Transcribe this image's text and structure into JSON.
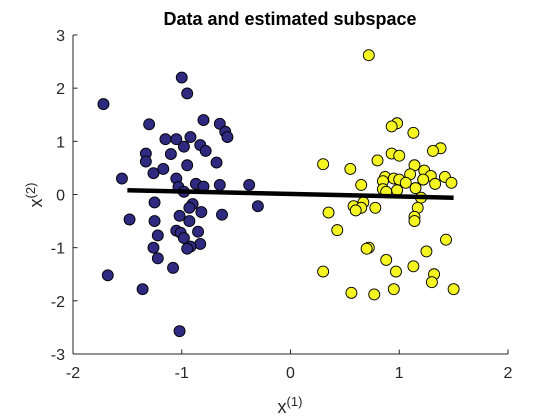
{
  "chart_data": {
    "type": "scatter",
    "title": "Data and estimated subspace",
    "xlabel": {
      "base": "x",
      "sup": "(1)"
    },
    "ylabel": {
      "base": "x",
      "sup": "(2)"
    },
    "xlim": [
      -2,
      2
    ],
    "ylim": [
      -3,
      3
    ],
    "xticks": [
      "-2",
      "-1",
      "0",
      "1",
      "2"
    ],
    "yticks": [
      "-3",
      "-2",
      "-1",
      "0",
      "1",
      "2",
      "3"
    ],
    "xtick_values": [
      -2,
      -1,
      0,
      1,
      2
    ],
    "ytick_values": [
      -3,
      -2,
      -1,
      0,
      1,
      2,
      3
    ],
    "grid": false,
    "colors": {
      "cluster1": "#2e2a80",
      "cluster2": "#f5f522",
      "marker_edge": "#000000",
      "subspace_line": "#000000",
      "axis": "#262626"
    },
    "series": [
      {
        "color": "#2e2a80",
        "points": [
          [
            -1.0,
            2.2
          ],
          [
            -0.95,
            1.9
          ],
          [
            -1.72,
            1.7
          ],
          [
            -0.8,
            1.4
          ],
          [
            -0.65,
            1.33
          ],
          [
            -1.3,
            1.32
          ],
          [
            -0.6,
            1.18
          ],
          [
            -0.58,
            1.08
          ],
          [
            -1.05,
            1.04
          ],
          [
            -0.92,
            1.08
          ],
          [
            -0.83,
            0.93
          ],
          [
            -1.15,
            1.04
          ],
          [
            -1.33,
            0.77
          ],
          [
            -0.98,
            0.9
          ],
          [
            -0.78,
            0.82
          ],
          [
            -1.1,
            0.76
          ],
          [
            -1.33,
            0.62
          ],
          [
            -0.68,
            0.6
          ],
          [
            -0.95,
            0.55
          ],
          [
            -1.17,
            0.48
          ],
          [
            -1.26,
            0.4
          ],
          [
            -1.05,
            0.3
          ],
          [
            -1.55,
            0.3
          ],
          [
            -0.87,
            0.2
          ],
          [
            -0.65,
            0.18
          ],
          [
            -0.38,
            0.18
          ],
          [
            -1.03,
            0.14
          ],
          [
            -0.8,
            0.15
          ],
          [
            -0.98,
            0.05
          ],
          [
            -1.25,
            -0.15
          ],
          [
            -0.9,
            -0.18
          ],
          [
            -0.93,
            -0.25
          ],
          [
            -0.3,
            -0.22
          ],
          [
            -1.48,
            -0.47
          ],
          [
            -1.02,
            -0.4
          ],
          [
            -0.82,
            -0.33
          ],
          [
            -0.63,
            -0.38
          ],
          [
            -1.25,
            -0.5
          ],
          [
            -0.93,
            -0.5
          ],
          [
            -1.05,
            -0.68
          ],
          [
            -1.01,
            -0.72
          ],
          [
            -0.85,
            -0.7
          ],
          [
            -1.22,
            -0.77
          ],
          [
            -0.98,
            -0.82
          ],
          [
            -0.83,
            -0.93
          ],
          [
            -0.92,
            -0.98
          ],
          [
            -0.95,
            -1.02
          ],
          [
            -1.26,
            -1.0
          ],
          [
            -1.22,
            -1.2
          ],
          [
            -1.08,
            -1.38
          ],
          [
            -1.68,
            -1.52
          ],
          [
            -1.36,
            -1.78
          ],
          [
            -1.02,
            -2.57
          ]
        ]
      },
      {
        "color": "#f5f522",
        "points": [
          [
            0.72,
            2.62
          ],
          [
            0.98,
            1.34
          ],
          [
            0.93,
            1.28
          ],
          [
            1.13,
            1.16
          ],
          [
            1.38,
            0.87
          ],
          [
            1.31,
            0.82
          ],
          [
            0.93,
            0.77
          ],
          [
            1.0,
            0.73
          ],
          [
            0.8,
            0.64
          ],
          [
            0.3,
            0.57
          ],
          [
            1.14,
            0.55
          ],
          [
            0.55,
            0.48
          ],
          [
            1.23,
            0.45
          ],
          [
            1.1,
            0.38
          ],
          [
            1.29,
            0.35
          ],
          [
            0.87,
            0.33
          ],
          [
            0.95,
            0.3
          ],
          [
            1.0,
            0.28
          ],
          [
            1.22,
            0.28
          ],
          [
            1.42,
            0.33
          ],
          [
            0.85,
            0.25
          ],
          [
            1.06,
            0.22
          ],
          [
            1.33,
            0.2
          ],
          [
            0.65,
            0.18
          ],
          [
            1.48,
            0.22
          ],
          [
            1.15,
            0.12
          ],
          [
            0.85,
            0.1
          ],
          [
            0.98,
            0.08
          ],
          [
            0.88,
            0.05
          ],
          [
            0.67,
            -0.15
          ],
          [
            1.2,
            -0.06
          ],
          [
            0.58,
            -0.22
          ],
          [
            0.65,
            -0.25
          ],
          [
            0.78,
            -0.25
          ],
          [
            1.17,
            -0.25
          ],
          [
            0.6,
            -0.3
          ],
          [
            0.35,
            -0.34
          ],
          [
            1.14,
            -0.42
          ],
          [
            1.14,
            -0.5
          ],
          [
            0.43,
            -0.67
          ],
          [
            1.43,
            -0.85
          ],
          [
            0.72,
            -1.0
          ],
          [
            0.7,
            -1.02
          ],
          [
            1.25,
            -1.07
          ],
          [
            0.88,
            -1.23
          ],
          [
            1.13,
            -1.35
          ],
          [
            0.3,
            -1.45
          ],
          [
            0.97,
            -1.45
          ],
          [
            1.32,
            -1.5
          ],
          [
            1.3,
            -1.65
          ],
          [
            0.95,
            -1.78
          ],
          [
            1.5,
            -1.78
          ],
          [
            0.56,
            -1.85
          ],
          [
            0.77,
            -1.88
          ]
        ]
      }
    ],
    "lines": [
      {
        "color": "#000000",
        "x": [
          -1.5,
          1.5
        ],
        "y": [
          0.08,
          -0.06
        ]
      }
    ]
  }
}
